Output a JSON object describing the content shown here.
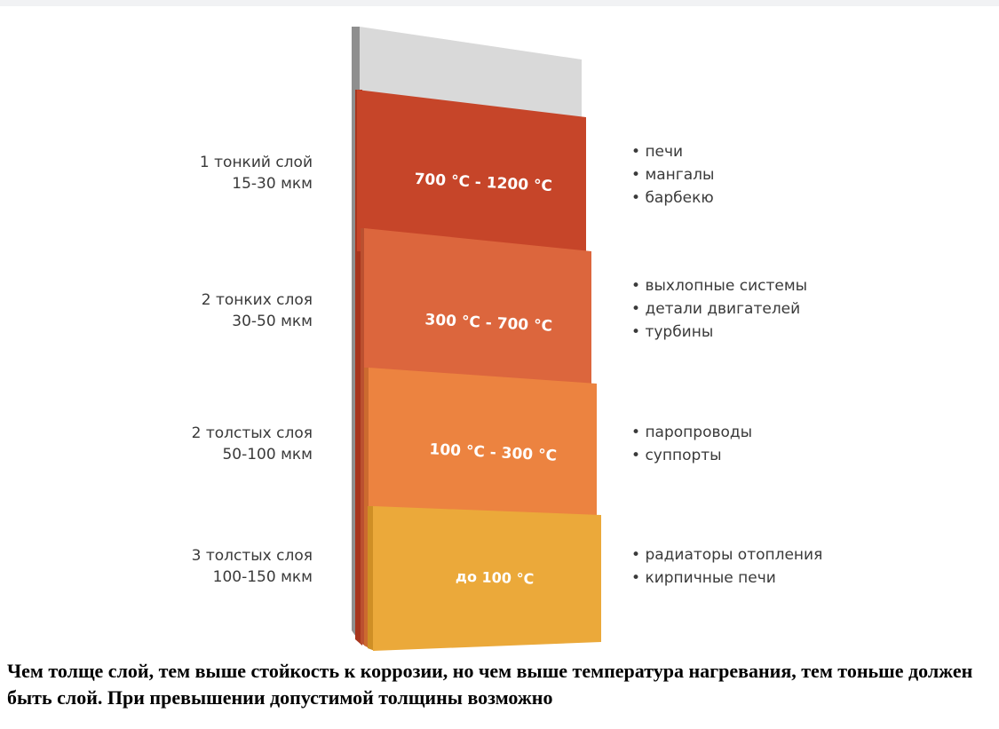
{
  "layers": [
    {
      "left": {
        "line1": "1 тонкий слой",
        "line2": "15-30 мкм"
      },
      "temp": "700 °C - 1200 °C",
      "color": "#c64529",
      "side": "#a8361e",
      "uses": [
        "печи",
        "мангалы",
        "барбекю"
      ]
    },
    {
      "left": {
        "line1": "2 тонких слоя",
        "line2": "30-50 мкм"
      },
      "temp": "300 °C - 700 °C",
      "color": "#dc663d",
      "side": "#bb5030",
      "uses": [
        "выхлопные системы",
        "детали двигателей",
        "турбины"
      ]
    },
    {
      "left": {
        "line1": "2 толстых слоя",
        "line2": "50-100 мкм"
      },
      "temp": "100 °C - 300 °C",
      "color": "#ec8340",
      "side": "#cc6a2f",
      "uses": [
        "паропроводы",
        "суппорты"
      ]
    },
    {
      "left": {
        "line1": "3 толстых слоя",
        "line2": "100-150 мкм"
      },
      "temp": "до 100 °C",
      "color": "#eba93a",
      "side": "#cf8f25",
      "uses": [
        "радиаторы отопления",
        "кирпичные печи"
      ]
    }
  ],
  "colors": {
    "base_face": "#d9d9d9",
    "base_side": "#8f8f8f",
    "temp_text": "#ffffff"
  },
  "caption": "Чем толще слой, тем выше стойкость к коррозии, но чем выше температура нагревания, тем тоньше должен быть слой. При превышении допустимой толщины возможно"
}
